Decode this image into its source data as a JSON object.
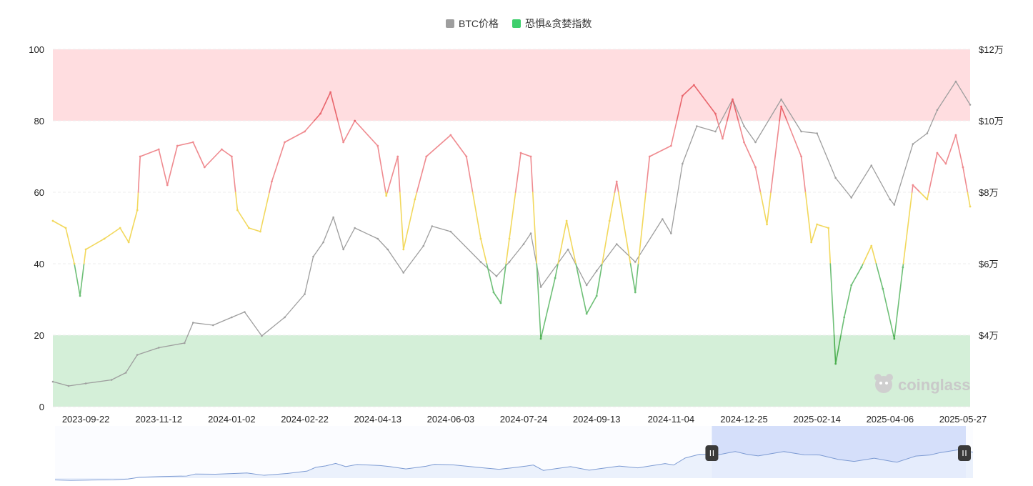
{
  "legend": {
    "btc_label": "BTC价格",
    "fng_label": "恐惧&贪婪指数",
    "btc_color": "#9e9e9e",
    "fng_color": "#3ecf6c"
  },
  "watermark": "coinglass",
  "colors": {
    "greed_zone": "#ffdde0",
    "fear_zone": "#d4efd8",
    "line_greed": "#ef8a8f",
    "line_extreme_greed": "#e9656c",
    "line_neutral": "#f2d85c",
    "line_fear": "#6dbf76",
    "line_extreme_fear": "#4caf50",
    "btc_line": "#9e9e9e",
    "navigator_fill": "#e8eefb",
    "navigator_line": "#7d9bd3",
    "navigator_selection": "#d5dffa"
  },
  "chart_data": {
    "type": "line",
    "x_ticks": [
      "2023-09-22",
      "2023-11-12",
      "2024-01-02",
      "2024-02-22",
      "2024-04-13",
      "2024-06-03",
      "2024-07-24",
      "2024-09-13",
      "2024-11-04",
      "2024-12-25",
      "2025-02-14",
      "2025-04-06",
      "2025-05-27"
    ],
    "y_left": {
      "ticks": [
        "0",
        "20",
        "40",
        "60",
        "80",
        "100"
      ],
      "range": [
        0,
        100
      ]
    },
    "y_right": {
      "ticks": [
        "$4万",
        "$6万",
        "$8万",
        "$10万",
        "$12万"
      ],
      "range": [
        20000,
        120000
      ]
    },
    "zones": [
      {
        "name": "extreme-greed",
        "from": 80,
        "to": 100
      },
      {
        "name": "extreme-fear",
        "from": 0,
        "to": 20
      }
    ],
    "x_range": [
      "2023-08-30",
      "2025-06-01"
    ],
    "series": [
      {
        "name": "BTC价格",
        "axis": "right",
        "points": [
          [
            "2023-08-30",
            27000
          ],
          [
            "2023-09-10",
            25800
          ],
          [
            "2023-09-22",
            26500
          ],
          [
            "2023-10-10",
            27500
          ],
          [
            "2023-10-20",
            29500
          ],
          [
            "2023-10-28",
            34500
          ],
          [
            "2023-11-12",
            36500
          ],
          [
            "2023-11-30",
            37800
          ],
          [
            "2023-12-06",
            43500
          ],
          [
            "2023-12-20",
            42800
          ],
          [
            "2024-01-02",
            45000
          ],
          [
            "2024-01-11",
            46500
          ],
          [
            "2024-01-23",
            39800
          ],
          [
            "2024-02-08",
            45000
          ],
          [
            "2024-02-22",
            51500
          ],
          [
            "2024-02-28",
            62000
          ],
          [
            "2024-03-06",
            66000
          ],
          [
            "2024-03-13",
            73000
          ],
          [
            "2024-03-20",
            64000
          ],
          [
            "2024-03-28",
            70000
          ],
          [
            "2024-04-13",
            67000
          ],
          [
            "2024-04-20",
            64000
          ],
          [
            "2024-05-01",
            57500
          ],
          [
            "2024-05-15",
            65000
          ],
          [
            "2024-05-21",
            70500
          ],
          [
            "2024-06-03",
            69000
          ],
          [
            "2024-06-24",
            60500
          ],
          [
            "2024-07-05",
            56500
          ],
          [
            "2024-07-14",
            60500
          ],
          [
            "2024-07-24",
            65500
          ],
          [
            "2024-07-29",
            68500
          ],
          [
            "2024-08-05",
            53500
          ],
          [
            "2024-08-24",
            64000
          ],
          [
            "2024-09-06",
            54000
          ],
          [
            "2024-09-13",
            58000
          ],
          [
            "2024-09-27",
            65500
          ],
          [
            "2024-10-10",
            60500
          ],
          [
            "2024-10-29",
            72500
          ],
          [
            "2024-11-04",
            68500
          ],
          [
            "2024-11-12",
            88000
          ],
          [
            "2024-11-22",
            98500
          ],
          [
            "2024-12-05",
            97000
          ],
          [
            "2024-12-17",
            106000
          ],
          [
            "2024-12-25",
            98500
          ],
          [
            "2025-01-02",
            94000
          ],
          [
            "2025-01-20",
            106000
          ],
          [
            "2025-02-03",
            97000
          ],
          [
            "2025-02-14",
            96500
          ],
          [
            "2025-02-27",
            84000
          ],
          [
            "2025-03-10",
            78500
          ],
          [
            "2025-03-24",
            87500
          ],
          [
            "2025-04-06",
            78000
          ],
          [
            "2025-04-09",
            76500
          ],
          [
            "2025-04-22",
            93500
          ],
          [
            "2025-05-02",
            96500
          ],
          [
            "2025-05-09",
            103000
          ],
          [
            "2025-05-22",
            111000
          ],
          [
            "2025-06-01",
            104500
          ]
        ]
      },
      {
        "name": "恐惧&贪婪指数",
        "axis": "left",
        "points": [
          [
            "2023-08-30",
            52
          ],
          [
            "2023-09-08",
            50
          ],
          [
            "2023-09-14",
            40
          ],
          [
            "2023-09-18",
            31
          ],
          [
            "2023-09-22",
            44
          ],
          [
            "2023-10-05",
            47
          ],
          [
            "2023-10-16",
            50
          ],
          [
            "2023-10-22",
            46
          ],
          [
            "2023-10-28",
            55
          ],
          [
            "2023-10-30",
            70
          ],
          [
            "2023-11-12",
            72
          ],
          [
            "2023-11-18",
            62
          ],
          [
            "2023-11-25",
            73
          ],
          [
            "2023-12-06",
            74
          ],
          [
            "2023-12-14",
            67
          ],
          [
            "2023-12-26",
            72
          ],
          [
            "2024-01-02",
            70
          ],
          [
            "2024-01-06",
            55
          ],
          [
            "2024-01-14",
            50
          ],
          [
            "2024-01-22",
            49
          ],
          [
            "2024-01-30",
            63
          ],
          [
            "2024-02-08",
            74
          ],
          [
            "2024-02-22",
            77
          ],
          [
            "2024-03-04",
            82
          ],
          [
            "2024-03-11",
            88
          ],
          [
            "2024-03-20",
            74
          ],
          [
            "2024-03-28",
            80
          ],
          [
            "2024-04-13",
            73
          ],
          [
            "2024-04-19",
            59
          ],
          [
            "2024-04-27",
            70
          ],
          [
            "2024-05-01",
            44
          ],
          [
            "2024-05-09",
            58
          ],
          [
            "2024-05-17",
            70
          ],
          [
            "2024-06-03",
            76
          ],
          [
            "2024-06-14",
            70
          ],
          [
            "2024-06-24",
            47
          ],
          [
            "2024-07-03",
            32
          ],
          [
            "2024-07-08",
            29
          ],
          [
            "2024-07-14",
            47
          ],
          [
            "2024-07-22",
            71
          ],
          [
            "2024-07-29",
            70
          ],
          [
            "2024-08-05",
            19
          ],
          [
            "2024-08-15",
            36
          ],
          [
            "2024-08-23",
            52
          ],
          [
            "2024-09-06",
            26
          ],
          [
            "2024-09-13",
            31
          ],
          [
            "2024-09-22",
            52
          ],
          [
            "2024-09-27",
            63
          ],
          [
            "2024-10-10",
            32
          ],
          [
            "2024-10-20",
            70
          ],
          [
            "2024-11-04",
            73
          ],
          [
            "2024-11-12",
            87
          ],
          [
            "2024-11-20",
            90
          ],
          [
            "2024-12-05",
            82
          ],
          [
            "2024-12-10",
            75
          ],
          [
            "2024-12-17",
            86
          ],
          [
            "2024-12-25",
            74
          ],
          [
            "2025-01-02",
            67
          ],
          [
            "2025-01-10",
            51
          ],
          [
            "2025-01-20",
            84
          ],
          [
            "2025-02-03",
            70
          ],
          [
            "2025-02-10",
            46
          ],
          [
            "2025-02-14",
            51
          ],
          [
            "2025-02-22",
            50
          ],
          [
            "2025-02-27",
            12
          ],
          [
            "2025-03-05",
            25
          ],
          [
            "2025-03-10",
            34
          ],
          [
            "2025-03-17",
            39
          ],
          [
            "2025-03-24",
            45
          ],
          [
            "2025-04-01",
            33
          ],
          [
            "2025-04-09",
            19
          ],
          [
            "2025-04-15",
            39
          ],
          [
            "2025-04-22",
            62
          ],
          [
            "2025-05-02",
            58
          ],
          [
            "2025-05-09",
            71
          ],
          [
            "2025-05-15",
            68
          ],
          [
            "2025-05-22",
            76
          ],
          [
            "2025-05-27",
            67
          ],
          [
            "2025-06-01",
            56
          ]
        ]
      }
    ],
    "legend_position": "top-center",
    "grid": "horizontal-dashed"
  }
}
